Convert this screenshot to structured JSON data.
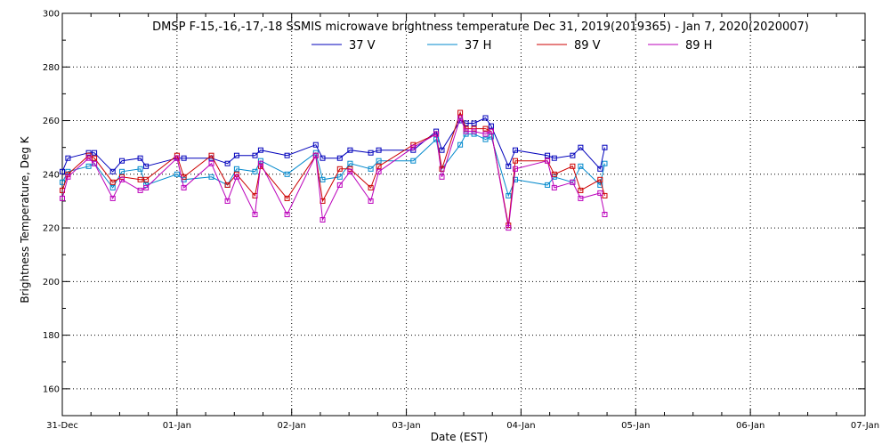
{
  "chart_data": {
    "type": "line",
    "title": "DMSP F-15,-16,-17,-18 SSMIS microwave brightness temperature Dec 31, 2019(2019365) - Jan  7, 2020(2020007)",
    "xlabel": "Date (EST)",
    "ylabel": "Brightness Temperature, Deg K",
    "ylim": [
      150,
      300
    ],
    "xlim": [
      0,
      7
    ],
    "x_ticks": [
      {
        "x": 0,
        "label": "31-Dec"
      },
      {
        "x": 1,
        "label": "01-Jan"
      },
      {
        "x": 2,
        "label": "02-Jan"
      },
      {
        "x": 3,
        "label": "03-Jan"
      },
      {
        "x": 4,
        "label": "04-Jan"
      },
      {
        "x": 5,
        "label": "05-Jan"
      },
      {
        "x": 6,
        "label": "06-Jan"
      },
      {
        "x": 7,
        "label": "07-Jan"
      }
    ],
    "y_ticks": [
      160,
      180,
      200,
      220,
      240,
      260,
      280,
      300
    ],
    "grid": true,
    "legend_position": "top",
    "series": [
      {
        "name": "37 V",
        "color": "#0000bb",
        "points": [
          [
            0.0,
            241
          ],
          [
            0.05,
            246
          ],
          [
            0.23,
            248
          ],
          [
            0.28,
            248
          ],
          [
            0.44,
            241
          ],
          [
            0.52,
            245
          ],
          [
            0.68,
            246
          ],
          [
            0.73,
            243
          ],
          [
            1.0,
            246
          ],
          [
            1.06,
            246
          ],
          [
            1.3,
            246
          ],
          [
            1.44,
            244
          ],
          [
            1.52,
            247
          ],
          [
            1.68,
            247
          ],
          [
            1.73,
            249
          ],
          [
            1.96,
            247
          ],
          [
            2.21,
            251
          ],
          [
            2.27,
            246
          ],
          [
            2.42,
            246
          ],
          [
            2.51,
            249
          ],
          [
            2.69,
            248
          ],
          [
            2.76,
            249
          ],
          [
            3.06,
            249
          ],
          [
            3.26,
            256
          ],
          [
            3.31,
            249
          ],
          [
            3.47,
            260
          ],
          [
            3.52,
            259
          ],
          [
            3.59,
            259
          ],
          [
            3.69,
            261
          ],
          [
            3.74,
            258
          ],
          [
            3.89,
            243
          ],
          [
            3.95,
            249
          ],
          [
            4.23,
            247
          ],
          [
            4.29,
            246
          ],
          [
            4.45,
            247
          ],
          [
            4.52,
            250
          ],
          [
            4.69,
            242
          ],
          [
            4.73,
            250
          ]
        ]
      },
      {
        "name": "37 H",
        "color": "#0088cc",
        "points": [
          [
            0.0,
            237
          ],
          [
            0.05,
            241
          ],
          [
            0.23,
            243
          ],
          [
            0.28,
            244
          ],
          [
            0.44,
            235
          ],
          [
            0.52,
            241
          ],
          [
            0.68,
            242
          ],
          [
            0.73,
            236
          ],
          [
            1.0,
            240
          ],
          [
            1.06,
            238
          ],
          [
            1.3,
            239
          ],
          [
            1.44,
            236
          ],
          [
            1.52,
            242
          ],
          [
            1.68,
            241
          ],
          [
            1.73,
            245
          ],
          [
            1.96,
            240
          ],
          [
            2.21,
            248
          ],
          [
            2.27,
            238
          ],
          [
            2.42,
            239
          ],
          [
            2.51,
            244
          ],
          [
            2.69,
            242
          ],
          [
            2.76,
            245
          ],
          [
            3.06,
            245
          ],
          [
            3.26,
            253
          ],
          [
            3.31,
            242
          ],
          [
            3.47,
            251
          ],
          [
            3.52,
            255
          ],
          [
            3.59,
            255
          ],
          [
            3.69,
            253
          ],
          [
            3.74,
            254
          ],
          [
            3.89,
            232
          ],
          [
            3.95,
            238
          ],
          [
            4.23,
            236
          ],
          [
            4.29,
            239
          ],
          [
            4.45,
            237
          ],
          [
            4.52,
            243
          ],
          [
            4.69,
            236
          ],
          [
            4.73,
            244
          ]
        ]
      },
      {
        "name": "89 V",
        "color": "#cc0000",
        "points": [
          [
            0.0,
            234
          ],
          [
            0.05,
            240
          ],
          [
            0.23,
            247
          ],
          [
            0.28,
            246
          ],
          [
            0.44,
            237
          ],
          [
            0.52,
            239
          ],
          [
            0.68,
            238
          ],
          [
            0.73,
            238
          ],
          [
            1.0,
            247
          ],
          [
            1.06,
            239
          ],
          [
            1.3,
            247
          ],
          [
            1.44,
            236
          ],
          [
            1.52,
            240
          ],
          [
            1.68,
            232
          ],
          [
            1.73,
            243
          ],
          [
            1.96,
            231
          ],
          [
            2.21,
            247
          ],
          [
            2.27,
            230
          ],
          [
            2.42,
            242
          ],
          [
            2.51,
            242
          ],
          [
            2.69,
            235
          ],
          [
            2.76,
            243
          ],
          [
            3.06,
            251
          ],
          [
            3.26,
            255
          ],
          [
            3.31,
            242
          ],
          [
            3.47,
            263
          ],
          [
            3.52,
            257
          ],
          [
            3.59,
            257
          ],
          [
            3.69,
            257
          ],
          [
            3.74,
            256
          ],
          [
            3.89,
            221
          ],
          [
            3.95,
            245
          ],
          [
            4.23,
            245
          ],
          [
            4.29,
            240
          ],
          [
            4.45,
            243
          ],
          [
            4.52,
            234
          ],
          [
            4.69,
            238
          ],
          [
            4.73,
            232
          ]
        ]
      },
      {
        "name": "89 H",
        "color": "#bb00bb",
        "points": [
          [
            0.0,
            231
          ],
          [
            0.05,
            239
          ],
          [
            0.23,
            246
          ],
          [
            0.28,
            244
          ],
          [
            0.44,
            231
          ],
          [
            0.52,
            238
          ],
          [
            0.68,
            234
          ],
          [
            0.73,
            235
          ],
          [
            1.0,
            246
          ],
          [
            1.06,
            235
          ],
          [
            1.3,
            244
          ],
          [
            1.44,
            230
          ],
          [
            1.52,
            239
          ],
          [
            1.68,
            225
          ],
          [
            1.73,
            244
          ],
          [
            1.96,
            225
          ],
          [
            2.21,
            247
          ],
          [
            2.27,
            223
          ],
          [
            2.42,
            236
          ],
          [
            2.51,
            241
          ],
          [
            2.69,
            230
          ],
          [
            2.76,
            241
          ],
          [
            3.06,
            250
          ],
          [
            3.26,
            255
          ],
          [
            3.31,
            239
          ],
          [
            3.47,
            261
          ],
          [
            3.52,
            256
          ],
          [
            3.59,
            256
          ],
          [
            3.69,
            255
          ],
          [
            3.74,
            256
          ],
          [
            3.89,
            220
          ],
          [
            3.95,
            242
          ],
          [
            4.23,
            245
          ],
          [
            4.29,
            235
          ],
          [
            4.45,
            237
          ],
          [
            4.52,
            231
          ],
          [
            4.69,
            233
          ],
          [
            4.73,
            225
          ]
        ]
      }
    ]
  }
}
